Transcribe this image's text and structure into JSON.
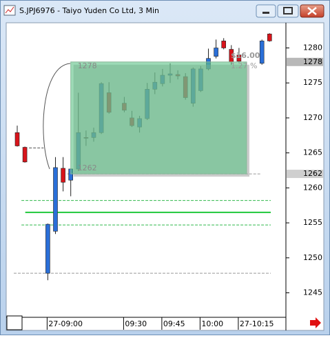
{
  "window_title": "S.JPJ6976 - Taiyo Yuden Co Ltd, 3 Min",
  "chart_data": {
    "type": "candlestick",
    "categories": [
      null,
      null,
      null,
      null,
      "27-09:00",
      null,
      null,
      null,
      null,
      null,
      null,
      null,
      null,
      null,
      "09:30",
      null,
      null,
      null,
      null,
      "09:45",
      null,
      null,
      null,
      null,
      "10:00",
      null,
      null,
      null,
      null,
      "27-10:15",
      null,
      null,
      null,
      null
    ],
    "open": [
      1267.9,
      1265.8,
      null,
      null,
      1247.8,
      1253.8,
      1262.8,
      1261.1,
      1262.7,
      1267.2,
      1267.2,
      1267.9,
      1273.6,
      null,
      1272.1,
      1270.0,
      1268.7,
      1269.9,
      1274.1,
      1274.9,
      1276.1,
      1276.2,
      1275.9,
      1272.1,
      1273.9,
      1277.0,
      1278.8,
      1281.0,
      1279.8,
      1279.0,
      null,
      null,
      1277.8,
      1282.0
    ],
    "high": [
      1268.9,
      1265.9,
      null,
      null,
      1254.9,
      1264.4,
      1264.4,
      1262.8,
      1273.6,
      1268.2,
      1268.6,
      1275.1,
      1275.1,
      null,
      1273.0,
      1271.0,
      1270.3,
      1275.0,
      1276.5,
      1277.0,
      1277.8,
      1276.8,
      1276.4,
      1277.2,
      1277.4,
      1279.9,
      1281.2,
      1281.4,
      1280.4,
      1280.0,
      null,
      null,
      1281.2,
      1282.1
    ],
    "low": [
      1265.9,
      1263.6,
      null,
      null,
      1246.8,
      1253.4,
      1259.5,
      1258.8,
      1262.4,
      1266.0,
      1266.6,
      1267.7,
      1270.6,
      null,
      1270.8,
      1268.7,
      1267.9,
      1269.7,
      1273.4,
      1274.5,
      1275.0,
      1275.5,
      1272.6,
      1271.6,
      1273.7,
      1276.8,
      1278.5,
      1279.8,
      1277.6,
      1277.9,
      null,
      null,
      1277.6,
      1280.9
    ],
    "close": [
      1266.0,
      1263.7,
      null,
      null,
      1254.8,
      1262.9,
      1260.8,
      1262.7,
      1267.9,
      1267.1,
      1267.9,
      1274.9,
      1270.8,
      null,
      1271.1,
      1268.9,
      1269.9,
      1274.1,
      1275.1,
      1276.1,
      1276.3,
      1276.0,
      1272.9,
      1277.0,
      1277.0,
      1278.5,
      1280.0,
      1280.0,
      1278.0,
      1278.1,
      null,
      null,
      1281.0,
      1281.0
    ],
    "up_color": "#2a6fd8",
    "down_color": "#d8141b",
    "ylim": [
      1241.5,
      1283.5
    ],
    "yticks": [
      1245,
      1250,
      1255,
      1260,
      1265,
      1270,
      1275,
      1280
    ],
    "price_markers": [
      1278,
      1262
    ],
    "rectangle": {
      "top": 1278,
      "bottom": 1262,
      "start": 7,
      "end": 30,
      "color": "#5cc285"
    },
    "annotations": [
      "$16.00",
      "1.27 %"
    ],
    "lines": [
      {
        "value": 1258.2,
        "color": "#2fb84a",
        "dashed": true,
        "start": 1
      },
      {
        "value": 1256.5,
        "color": "#1fc83a",
        "dashed": false,
        "start": 1.5
      },
      {
        "value": 1254.7,
        "color": "#2fb84a",
        "dashed": true,
        "start": 1
      },
      {
        "value": 1262,
        "color": "#999999",
        "dashed": true,
        "start": 7
      },
      {
        "value": 1247.8,
        "color": "#999999",
        "dashed": true,
        "start": 0
      },
      {
        "value": 1265.7,
        "color": "#555555",
        "dashed": true,
        "start": 2
      }
    ]
  }
}
